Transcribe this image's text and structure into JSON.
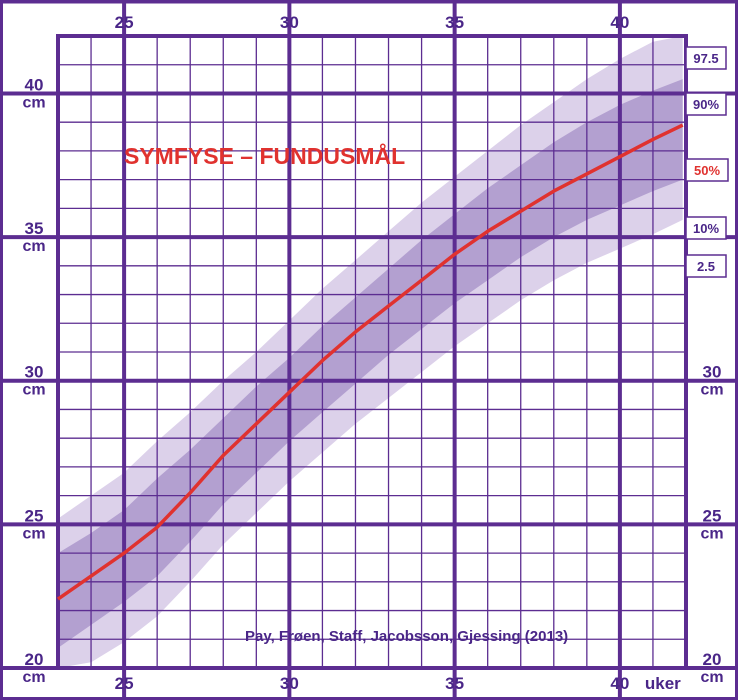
{
  "colors": {
    "frame": "#5c2d91",
    "band_outer": "#dcd1ea",
    "band_inner": "#b3a0d0",
    "median": "#e0322f",
    "title": "#e0322f",
    "text": "#4a2688"
  },
  "chart_data": {
    "type": "line",
    "title": "SYMFYSE – FUNDUSMÅL",
    "credit": "Pay, Frøen, Staff, Jacobsson, Gjessing (2013)",
    "xunit": "uker",
    "yunit": "cm",
    "xlim": [
      23,
      42
    ],
    "ylim": [
      20,
      42
    ],
    "xticks": [
      25,
      30,
      35,
      40
    ],
    "yticks": [
      20,
      25,
      30,
      35,
      40
    ],
    "grid": true,
    "x": [
      23,
      24,
      25,
      26,
      27,
      28,
      29,
      30,
      31,
      32,
      33,
      34,
      35,
      36,
      37,
      38,
      39,
      40,
      41,
      41.9
    ],
    "series": [
      {
        "name": "97.5",
        "values": [
          25.2,
          26.0,
          26.8,
          27.9,
          28.9,
          30.0,
          31.0,
          32.1,
          33.2,
          34.2,
          35.2,
          36.2,
          37.1,
          38.0,
          38.9,
          39.7,
          40.5,
          41.2,
          41.8,
          42.3
        ]
      },
      {
        "name": "90%",
        "values": [
          24.0,
          24.7,
          25.5,
          26.6,
          27.6,
          28.7,
          29.8,
          30.8,
          31.9,
          32.9,
          33.9,
          34.9,
          35.8,
          36.7,
          37.5,
          38.3,
          39.0,
          39.6,
          40.1,
          40.5
        ]
      },
      {
        "name": "50%",
        "values": [
          22.4,
          23.2,
          24.0,
          24.9,
          26.1,
          27.4,
          28.5,
          29.6,
          30.7,
          31.7,
          32.6,
          33.5,
          34.4,
          35.2,
          35.9,
          36.6,
          37.2,
          37.8,
          38.4,
          38.9
        ]
      },
      {
        "name": "10%",
        "values": [
          20.7,
          21.5,
          22.3,
          23.2,
          24.4,
          25.7,
          26.8,
          27.9,
          28.9,
          29.9,
          30.9,
          31.8,
          32.7,
          33.5,
          34.3,
          35.0,
          35.6,
          36.1,
          36.6,
          37.0
        ]
      },
      {
        "name": "2.5",
        "values": [
          19.5,
          20.2,
          20.9,
          21.8,
          23.0,
          24.3,
          25.4,
          26.5,
          27.5,
          28.5,
          29.4,
          30.3,
          31.2,
          32.0,
          32.8,
          33.5,
          34.1,
          34.6,
          35.1,
          35.6
        ]
      }
    ]
  }
}
